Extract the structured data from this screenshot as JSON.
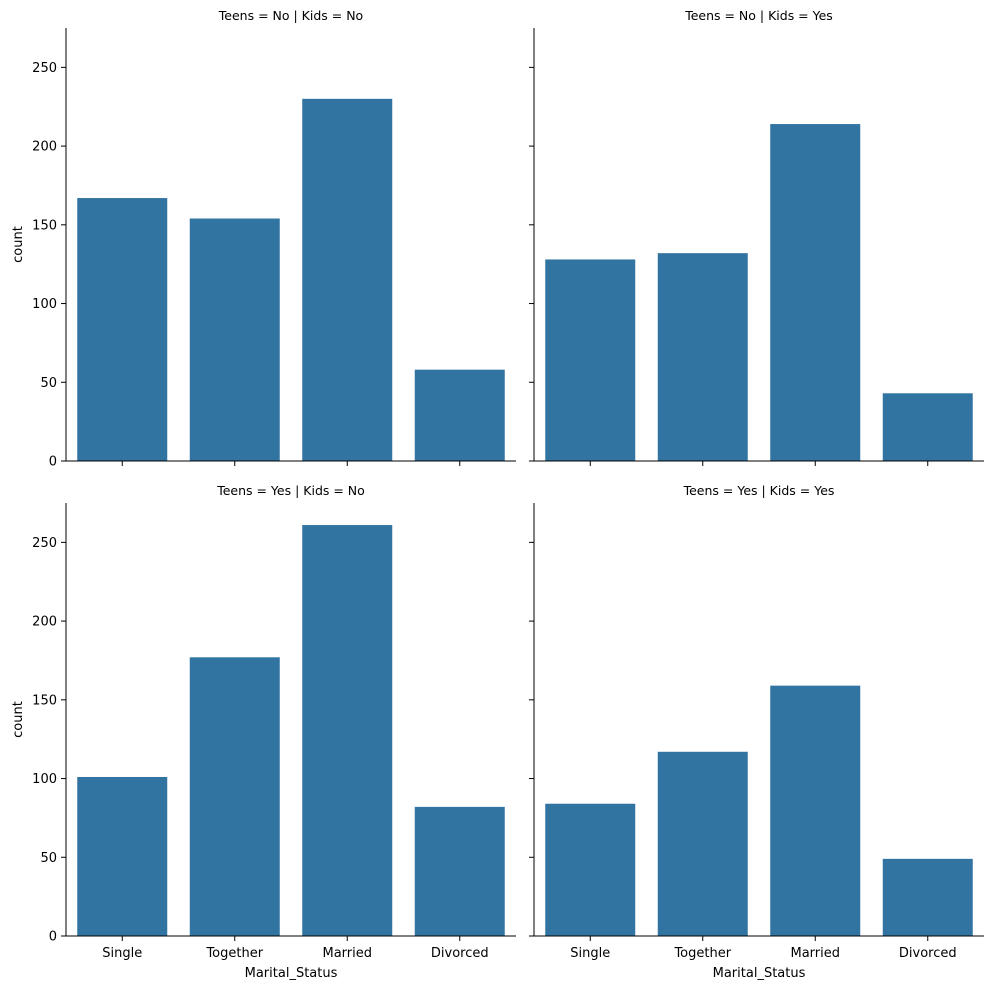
{
  "chart_data": {
    "type": "bar",
    "layout": "facet-grid",
    "row_variable": "Teens",
    "col_variable": "Kids",
    "shared_x_axis": true,
    "shared_y_axis": true,
    "categories": [
      "Single",
      "Together",
      "Married",
      "Divorced"
    ],
    "xlabel": "Marital_Status",
    "ylabel": "count",
    "ylim": [
      0,
      275
    ],
    "yticks": [
      0,
      50,
      100,
      150,
      200,
      250
    ],
    "grid": false,
    "bar_color": "#3274a1",
    "panels": [
      {
        "title": "Teens = No | Kids = No",
        "values": [
          167,
          154,
          230,
          58
        ]
      },
      {
        "title": "Teens = No | Kids = Yes",
        "values": [
          128,
          132,
          214,
          43
        ]
      },
      {
        "title": "Teens = Yes | Kids = No",
        "values": [
          101,
          177,
          261,
          82
        ]
      },
      {
        "title": "Teens = Yes | Kids = Yes",
        "values": [
          84,
          117,
          159,
          49
        ]
      }
    ]
  }
}
